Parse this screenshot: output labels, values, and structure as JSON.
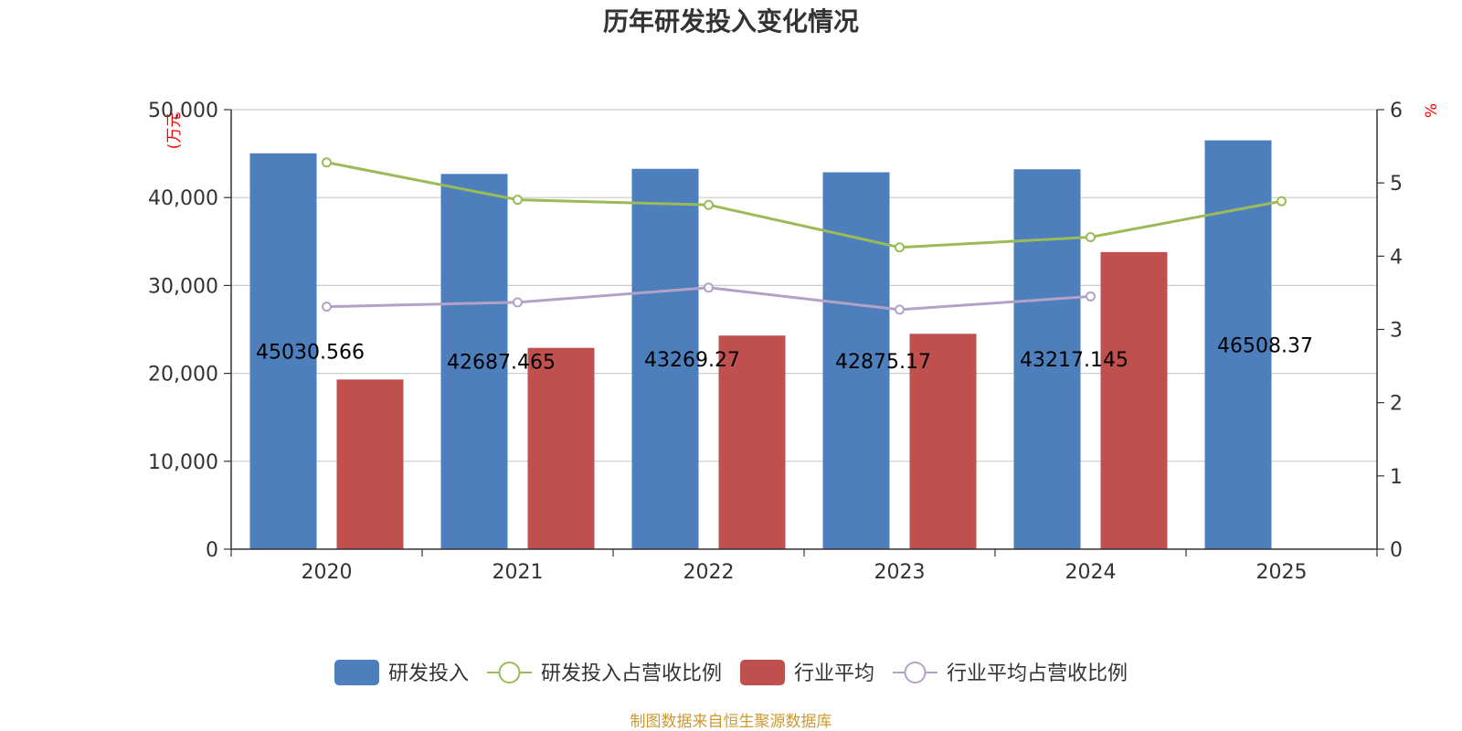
{
  "chart_data": {
    "type": "bar",
    "title": "历年研发投入变化情况",
    "categories": [
      "2020",
      "2021",
      "2022",
      "2023",
      "2024",
      "2025"
    ],
    "y_left": {
      "unit_label": "(万元",
      "ylim": [
        0,
        50000
      ],
      "ticks": [
        0,
        10000,
        20000,
        30000,
        40000,
        50000
      ],
      "tick_labels": [
        "0",
        "10,000",
        "20,000",
        "30,000",
        "40,000",
        "50,000"
      ]
    },
    "y_right": {
      "unit_label": "%",
      "ylim": [
        0,
        6
      ],
      "ticks": [
        0,
        1,
        2,
        3,
        4,
        5,
        6
      ],
      "tick_labels": [
        "0",
        "1",
        "2",
        "3",
        "4",
        "5",
        "6"
      ]
    },
    "grid": true,
    "legend_position": "bottom",
    "series": [
      {
        "name": "研发投入",
        "type": "bar",
        "axis": "left",
        "color": "#4e7fbd",
        "values": [
          45030.566,
          42687.465,
          43269.27,
          42875.17,
          43217.145,
          46508.37
        ],
        "data_labels": [
          "45030.566",
          "42687.465",
          "43269.27",
          "42875.17",
          "43217.145",
          "46508.37"
        ]
      },
      {
        "name": "研发投入占营收比例",
        "type": "line",
        "axis": "right",
        "color": "#9bbb59",
        "values": [
          5.28,
          4.77,
          4.7,
          4.12,
          4.26,
          4.75
        ]
      },
      {
        "name": "行业平均",
        "type": "bar",
        "axis": "left",
        "color": "#c0504d",
        "values": [
          19300,
          22900,
          24300,
          24500,
          33800,
          null
        ]
      },
      {
        "name": "行业平均占营收比例",
        "type": "line",
        "axis": "right",
        "color": "#b3a2c7",
        "values": [
          3.31,
          3.37,
          3.57,
          3.27,
          3.45,
          null
        ]
      }
    ],
    "source": "制图数据来自恒生聚源数据库",
    "source_color": "#cc9933"
  }
}
